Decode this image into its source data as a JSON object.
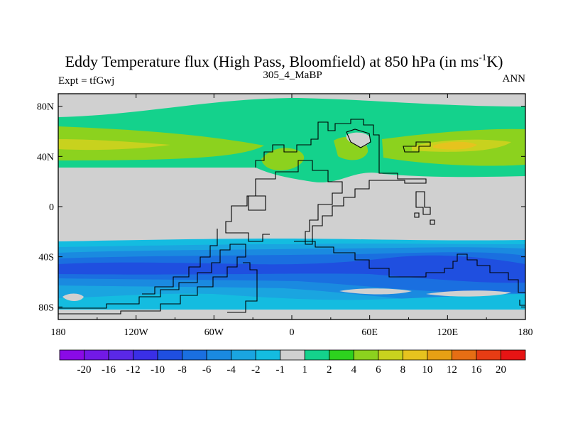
{
  "chart_data": {
    "type": "heatmap",
    "title": "Eddy Temperature flux (High Pass, Bloomfield) at 850 hPa (in ms",
    "title_superscript": "-1",
    "title_end": "K)",
    "subtitle_left": "Expt = tfGwj",
    "subtitle_center": "305_4_MaBP",
    "subtitle_right": "ANN",
    "x_ticks": [
      "180",
      "120W",
      "60W",
      "0",
      "60E",
      "120E",
      "180"
    ],
    "x_tick_values": [
      -180,
      -120,
      -60,
      0,
      60,
      120,
      180
    ],
    "y_ticks": [
      "80N",
      "40N",
      "0",
      "40S",
      "80S"
    ],
    "y_tick_values": [
      80,
      40,
      0,
      -40,
      -80
    ],
    "xlim": [
      -180,
      180
    ],
    "ylim": [
      -90,
      90
    ],
    "colorbar": {
      "labels": [
        "-20",
        "-16",
        "-12",
        "-10",
        "-8",
        "-6",
        "-4",
        "-2",
        "-1",
        "1",
        "2",
        "4",
        "6",
        "8",
        "10",
        "12",
        "16",
        "20"
      ],
      "colors": [
        "#8a0ae6",
        "#7219e6",
        "#5a28e6",
        "#3a2fe6",
        "#1f4fe0",
        "#1a6fe0",
        "#1a8ae0",
        "#1aa5e0",
        "#14bce0",
        "#d0d0d0",
        "#14d28c",
        "#2dd21e",
        "#8cd21e",
        "#c8d21e",
        "#e6c31e",
        "#e6a014",
        "#e66e14",
        "#e63c14",
        "#e61414"
      ]
    },
    "bands": [
      {
        "lat_range": [
          64,
          80
        ],
        "level": "1 to 2",
        "color": "#14d28c"
      },
      {
        "lat_range": [
          22,
          64
        ],
        "level": "2 to 6",
        "color": "#8cd21e"
      },
      {
        "lat_range": [
          44,
          52
        ],
        "level": "6 to 8",
        "color": "#c8d21e"
      },
      {
        "lat_range": [
          -22,
          22
        ],
        "level": "-1 to 1",
        "color": "#d0d0d0"
      },
      {
        "lat_range": [
          -90,
          -22
        ],
        "level": "-2 to -8",
        "color": "#1a8ae0"
      },
      {
        "lat_range": [
          -60,
          -40
        ],
        "level": "-8 to -10",
        "color": "#1f4fe0"
      }
    ]
  }
}
